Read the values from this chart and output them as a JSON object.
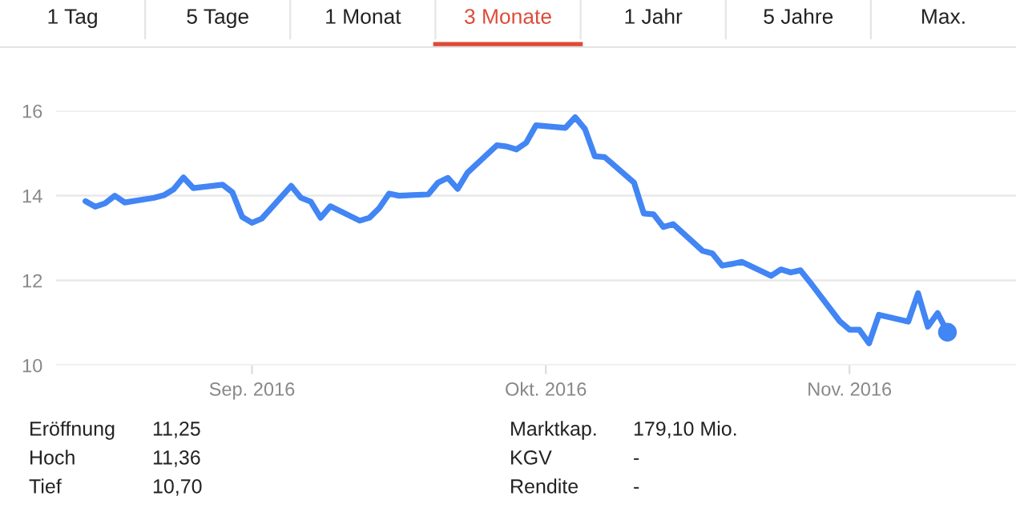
{
  "chart_data": [
    {
      "type": "other",
      "categories": [
        "1 Tag",
        "5 Tage",
        "1 Monat",
        "3 Monate",
        "1 Jahr",
        "5 Jahre",
        "Max."
      ],
      "colors": [
        "#222222",
        "#222222",
        "#222222",
        "#dd4b39",
        "#222222",
        "#222222",
        "#222222"
      ]
    },
    {
      "type": "line",
      "x": [
        "2016-08-15",
        "2016-08-16",
        "2016-08-17",
        "2016-08-18",
        "2016-08-19",
        "2016-08-22",
        "2016-08-23",
        "2016-08-24",
        "2016-08-25",
        "2016-08-26",
        "2016-08-29",
        "2016-08-30",
        "2016-08-31",
        "2016-09-01",
        "2016-09-02",
        "2016-09-05",
        "2016-09-06",
        "2016-09-07",
        "2016-09-08",
        "2016-09-09",
        "2016-09-12",
        "2016-09-13",
        "2016-09-14",
        "2016-09-15",
        "2016-09-16",
        "2016-09-19",
        "2016-09-20",
        "2016-09-21",
        "2016-09-22",
        "2016-09-23",
        "2016-09-26",
        "2016-09-27",
        "2016-09-28",
        "2016-09-29",
        "2016-09-30",
        "2016-10-03",
        "2016-10-04",
        "2016-10-05",
        "2016-10-06",
        "2016-10-07",
        "2016-10-10",
        "2016-10-11",
        "2016-10-12",
        "2016-10-13",
        "2016-10-14",
        "2016-10-17",
        "2016-10-18",
        "2016-10-19",
        "2016-10-20",
        "2016-10-21",
        "2016-10-24",
        "2016-10-25",
        "2016-10-26",
        "2016-10-27",
        "2016-10-28",
        "2016-10-31",
        "2016-11-01",
        "2016-11-02",
        "2016-11-03",
        "2016-11-04",
        "2016-11-07",
        "2016-11-08",
        "2016-11-09",
        "2016-11-10",
        "2016-11-11"
      ],
      "series": [
        {
          "color": "#4285f4",
          "values": [
            13.87,
            13.74,
            13.82,
            14.0,
            13.84,
            13.95,
            14.01,
            14.15,
            14.43,
            14.18,
            14.26,
            14.08,
            13.5,
            13.36,
            13.46,
            14.23,
            13.95,
            13.86,
            13.48,
            13.75,
            13.41,
            13.48,
            13.71,
            14.05,
            14.0,
            14.03,
            14.31,
            14.42,
            14.16,
            14.54,
            15.19,
            15.16,
            15.09,
            15.25,
            15.66,
            15.6,
            15.85,
            15.57,
            14.93,
            14.91,
            14.31,
            13.58,
            13.56,
            13.26,
            13.33,
            12.7,
            12.64,
            12.35,
            12.39,
            12.44,
            12.11,
            12.26,
            12.19,
            12.24,
            11.95,
            11.04,
            10.84,
            10.84,
            10.52,
            11.19,
            11.03,
            11.7,
            10.91,
            11.23,
            10.78
          ]
        },
        {
          "type": "scatter",
          "color": "#4285f4",
          "x": [
            "2016-11-11"
          ],
          "values": [
            10.78
          ]
        }
      ],
      "xlim": [
        "2016-08-12",
        "2016-11-18"
      ],
      "xticks": [
        {
          "value": "2016-09-01",
          "label": "Sep. 2016"
        },
        {
          "value": "2016-10-01",
          "label": "Okt. 2016"
        },
        {
          "value": "2016-11-01",
          "label": "Nov. 2016"
        }
      ],
      "ylim": [
        10,
        16
      ],
      "yticks": [
        10,
        12,
        14,
        16
      ],
      "grid": "y",
      "legend": false
    },
    {
      "type": "other",
      "annotations": [
        "Eröffnung",
        "11,25",
        "Hoch",
        "11,36",
        "Tief",
        "10,70",
        "Marktkap.",
        "179,10 Mio.",
        "KGV",
        "-",
        "Rendite",
        "-"
      ]
    }
  ]
}
